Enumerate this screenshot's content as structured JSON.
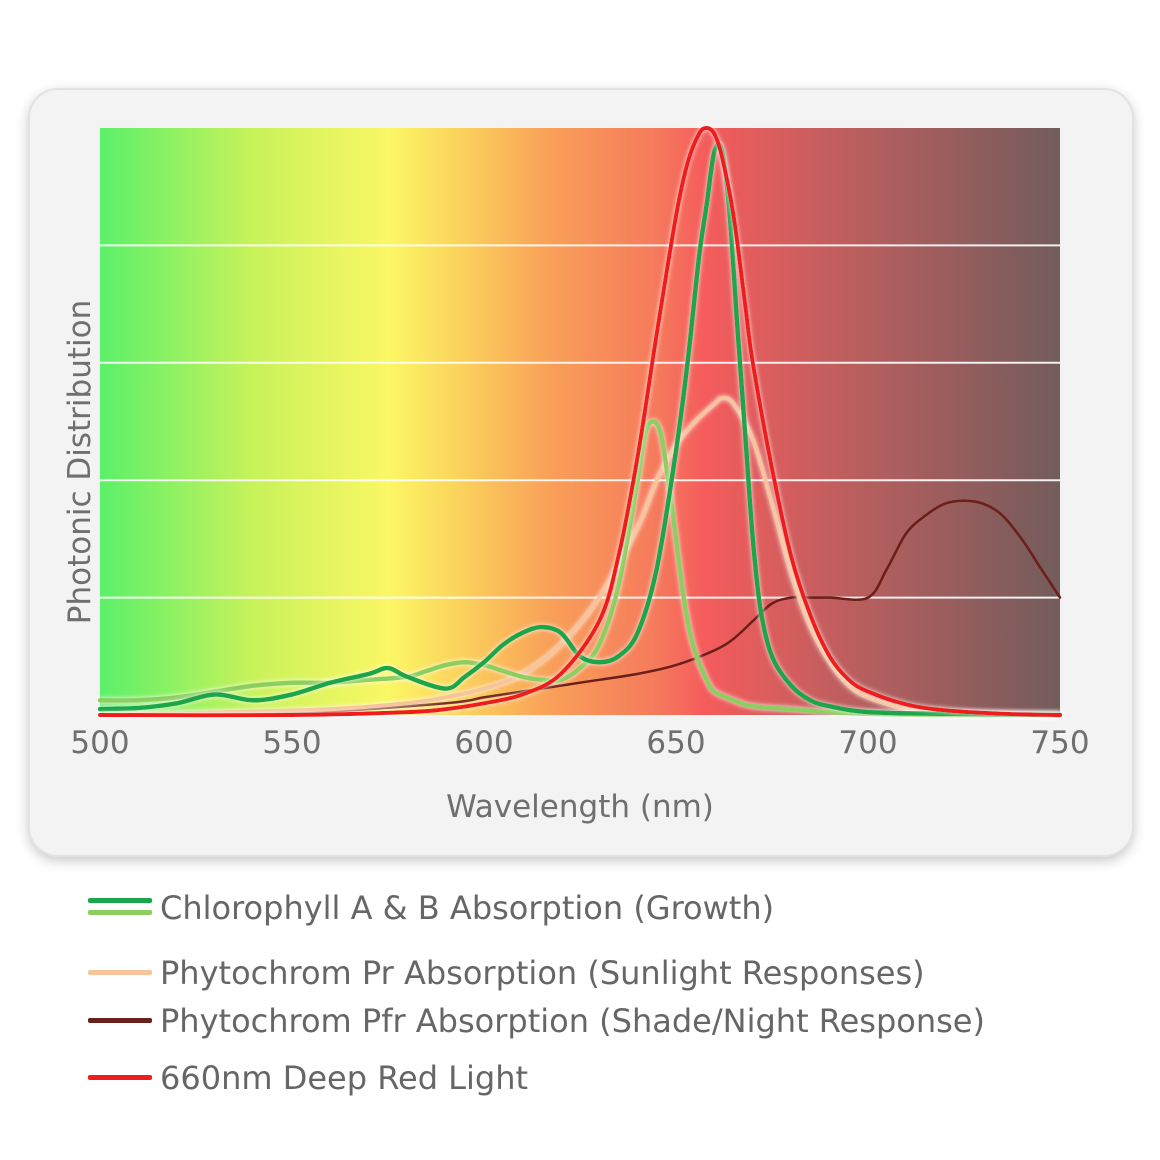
{
  "chart_data": {
    "type": "line",
    "xlabel": "Wavelength (nm)",
    "ylabel": "Photonic Distribution",
    "xlim": [
      500,
      750
    ],
    "ylim": [
      0,
      1
    ],
    "x_ticks": [
      "500",
      "550",
      "600",
      "650",
      "700",
      "750"
    ],
    "grid": true,
    "legend_placement": "bottom",
    "background": "visible-spectrum-gradient",
    "series": [
      {
        "key": "chl_a",
        "color": "#1aa64a",
        "x": [
          500,
          510,
          520,
          530,
          540,
          550,
          560,
          570,
          575,
          580,
          590,
          595,
          600,
          605,
          610,
          615,
          620,
          625,
          630,
          635,
          640,
          645,
          650,
          653,
          656,
          658,
          660,
          662,
          664,
          666,
          668,
          670,
          672,
          675,
          680,
          685,
          690,
          700,
          720,
          750
        ],
        "y": [
          0.01,
          0.012,
          0.02,
          0.035,
          0.025,
          0.035,
          0.055,
          0.07,
          0.08,
          0.065,
          0.045,
          0.065,
          0.09,
          0.12,
          0.14,
          0.15,
          0.14,
          0.1,
          0.09,
          0.1,
          0.14,
          0.25,
          0.45,
          0.6,
          0.78,
          0.87,
          0.96,
          0.96,
          0.85,
          0.66,
          0.48,
          0.3,
          0.18,
          0.1,
          0.05,
          0.025,
          0.015,
          0.005,
          0.002,
          0.0
        ]
      },
      {
        "key": "chl_b",
        "color": "#8ccf5e",
        "x": [
          500,
          510,
          520,
          530,
          540,
          550,
          560,
          570,
          580,
          585,
          590,
          595,
          600,
          605,
          610,
          615,
          620,
          625,
          630,
          635,
          640,
          642,
          644,
          646,
          648,
          650,
          652,
          654,
          656,
          658,
          660,
          665,
          670,
          680,
          690,
          700,
          720,
          750
        ],
        "y": [
          0.025,
          0.025,
          0.03,
          0.04,
          0.05,
          0.055,
          0.055,
          0.06,
          0.065,
          0.075,
          0.085,
          0.09,
          0.085,
          0.075,
          0.065,
          0.06,
          0.06,
          0.08,
          0.12,
          0.22,
          0.4,
          0.48,
          0.5,
          0.48,
          0.4,
          0.3,
          0.2,
          0.13,
          0.09,
          0.06,
          0.04,
          0.025,
          0.015,
          0.01,
          0.005,
          0.002,
          0.0,
          0.0
        ]
      },
      {
        "key": "pr",
        "color": "#f7c49c",
        "x": [
          500,
          520,
          540,
          560,
          580,
          590,
          600,
          610,
          620,
          630,
          640,
          645,
          650,
          655,
          660,
          662,
          665,
          670,
          675,
          680,
          685,
          690,
          695,
          700,
          710,
          720,
          730,
          750
        ],
        "y": [
          0.0,
          0.003,
          0.006,
          0.01,
          0.02,
          0.03,
          0.045,
          0.07,
          0.12,
          0.2,
          0.32,
          0.4,
          0.46,
          0.5,
          0.53,
          0.54,
          0.53,
          0.47,
          0.36,
          0.24,
          0.15,
          0.09,
          0.05,
          0.03,
          0.01,
          0.005,
          0.002,
          0.0
        ]
      },
      {
        "key": "pfr",
        "color": "#6b1f1a",
        "x": [
          500,
          550,
          590,
          600,
          610,
          620,
          630,
          640,
          650,
          660,
          665,
          670,
          675,
          680,
          685,
          690,
          700,
          705,
          710,
          715,
          720,
          725,
          730,
          735,
          740,
          745,
          750
        ],
        "y": [
          0.0,
          0.003,
          0.02,
          0.03,
          0.04,
          0.05,
          0.06,
          0.07,
          0.085,
          0.11,
          0.13,
          0.16,
          0.19,
          0.2,
          0.2,
          0.2,
          0.2,
          0.25,
          0.31,
          0.34,
          0.36,
          0.365,
          0.36,
          0.34,
          0.3,
          0.25,
          0.2
        ]
      },
      {
        "key": "red",
        "color": "#ef1d1d",
        "x": [
          500,
          550,
          580,
          590,
          600,
          610,
          620,
          630,
          635,
          640,
          645,
          650,
          653,
          656,
          658,
          660,
          662,
          665,
          668,
          670,
          675,
          680,
          685,
          690,
          695,
          700,
          710,
          720,
          735,
          750
        ],
        "y": [
          0.0,
          0.0,
          0.005,
          0.01,
          0.02,
          0.035,
          0.07,
          0.16,
          0.27,
          0.44,
          0.65,
          0.85,
          0.94,
          0.99,
          1.0,
          0.99,
          0.95,
          0.85,
          0.7,
          0.6,
          0.42,
          0.27,
          0.17,
          0.1,
          0.06,
          0.04,
          0.018,
          0.008,
          0.002,
          0.0
        ]
      }
    ]
  },
  "legend": {
    "chlorophyll": {
      "label": "Chlorophyll A & B Absorption (Growth)",
      "colors": [
        "#1aa64a",
        "#8ccf5e"
      ]
    },
    "pr": {
      "label": "Phytochrom Pr Absorption (Sunlight Responses)",
      "color": "#f7c49c"
    },
    "pfr": {
      "label": "Phytochrom Pfr Absorption (Shade/Night Response)",
      "color": "#6b1f1a"
    },
    "red": {
      "label": "660nm Deep Red Light",
      "color": "#ef1d1d"
    }
  }
}
